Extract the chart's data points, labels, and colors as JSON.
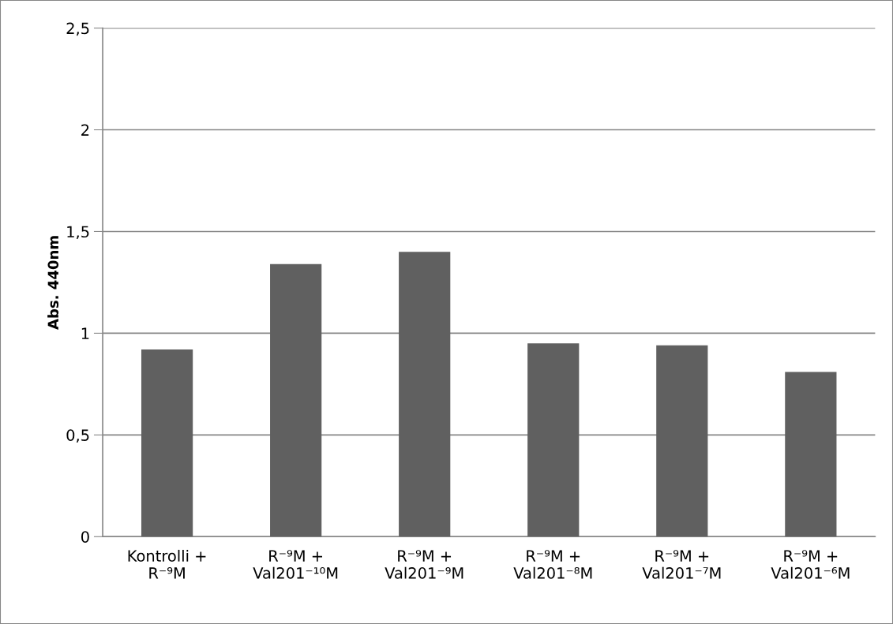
{
  "chart_data": {
    "type": "bar",
    "ylabel": "Abs. 440nm",
    "categories": [
      "Kontrolli +\nR⁻⁹M",
      "R⁻⁹M +\nVal201⁻¹⁰M",
      "R⁻⁹M +\nVal201⁻⁹M",
      "R⁻⁹M +\nVal201⁻⁸M",
      "R⁻⁹M +\nVal201⁻⁷M",
      "R⁻⁹M +\nVal201⁻⁶M"
    ],
    "values": [
      0.92,
      1.34,
      1.4,
      0.95,
      0.94,
      0.81
    ],
    "color": "#606060",
    "ylim": [
      0,
      2.5
    ],
    "yticks": [
      {
        "value": 0,
        "label": "0"
      },
      {
        "value": 0.5,
        "label": "0,5"
      },
      {
        "value": 1,
        "label": "1"
      },
      {
        "value": 1.5,
        "label": "1,5"
      },
      {
        "value": 2,
        "label": "2"
      },
      {
        "value": 2.5,
        "label": "2,5"
      }
    ],
    "grid": "y",
    "legend": false
  }
}
